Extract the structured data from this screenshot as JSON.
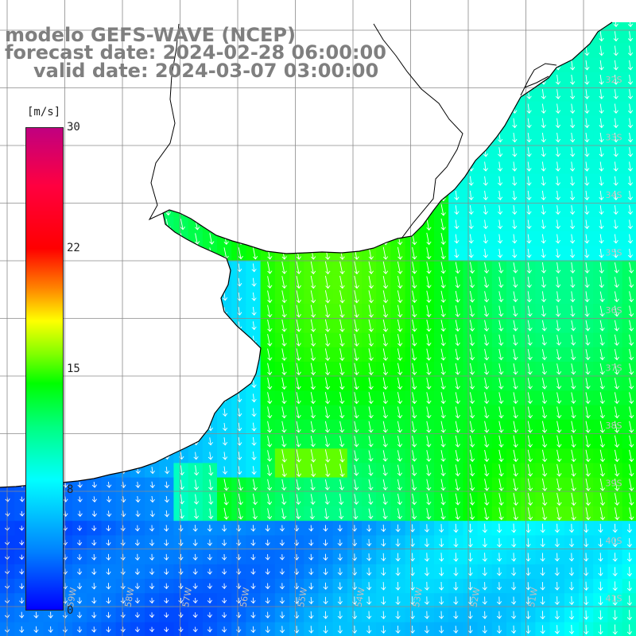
{
  "title": {
    "line1": "modelo GEFS-WAVE (NCEP)",
    "line2": "forecast date: 2024-02-28 06:00:00",
    "line3": "valid date: 2024-03-07 03:00:00"
  },
  "colorbar": {
    "unit": "[m/s]",
    "ticks": [
      "30",
      "22",
      "15",
      "8",
      "0"
    ],
    "range": [
      0,
      30
    ],
    "colors": [
      "#0000ff",
      "#0080ff",
      "#00ffff",
      "#00ff80",
      "#00ff00",
      "#ffff00",
      "#ff8000",
      "#ff0000",
      "#c00080"
    ]
  },
  "map": {
    "lat_labels": [
      "32S",
      "33S",
      "34S",
      "35S",
      "36S",
      "37S",
      "38S",
      "39S",
      "40S",
      "41S"
    ],
    "lon_labels": [
      "59W",
      "58W",
      "57W",
      "56W",
      "55W",
      "54W",
      "53W",
      "52W",
      "51W"
    ],
    "land_color": "#ffffff",
    "grid_color": "#8a8a8a"
  }
}
